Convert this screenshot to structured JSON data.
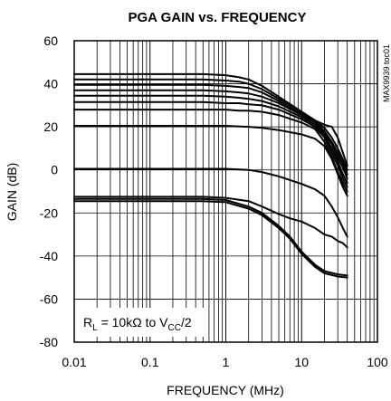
{
  "chart_data": {
    "type": "line",
    "title": "PGA GAIN vs. FREQUENCY",
    "xlabel": "FREQUENCY (MHz)",
    "ylabel": "GAIN (dB)",
    "x_scale": "log",
    "xlim": [
      0.01,
      100
    ],
    "ylim": [
      -80,
      60
    ],
    "x_ticks": [
      "0.01",
      "0.1",
      "1",
      "10",
      "100"
    ],
    "y_ticks": [
      "60",
      "40",
      "20",
      "0",
      "-20",
      "-40",
      "-60",
      "-80"
    ],
    "grid": true,
    "chart_code": "MAX9939 toc01",
    "annotation": {
      "prefix": "R",
      "sub1": "L",
      "middle": " = 10kΩ to V",
      "sub2": "CC",
      "suffix": "/2"
    },
    "series": [
      {
        "x": [
          0.01,
          0.5,
          1,
          1.5,
          2,
          3,
          5,
          10,
          15,
          20,
          25,
          30,
          35,
          40
        ],
        "y": [
          44.5,
          44.5,
          44,
          43,
          42,
          39,
          34,
          27,
          23,
          21,
          20,
          15,
          8,
          2
        ]
      },
      {
        "x": [
          0.01,
          0.5,
          1,
          1.5,
          2,
          3,
          5,
          10,
          15,
          20,
          25,
          30,
          35,
          40
        ],
        "y": [
          42,
          42,
          41.5,
          41,
          40,
          37.5,
          33,
          27,
          23,
          19.5,
          15,
          10,
          5,
          0
        ]
      },
      {
        "x": [
          0.01,
          0.5,
          1,
          1.5,
          2,
          3,
          5,
          10,
          15,
          20,
          25,
          30,
          35,
          40
        ],
        "y": [
          39.5,
          39.5,
          39,
          38.5,
          38,
          36,
          32,
          26,
          22.5,
          18,
          13,
          8,
          3,
          -2
        ]
      },
      {
        "x": [
          0.01,
          0.5,
          1,
          1.5,
          2,
          3,
          5,
          10,
          15,
          20,
          25,
          30,
          35,
          40
        ],
        "y": [
          37,
          37,
          36.5,
          36,
          35.5,
          34,
          31,
          25.5,
          22,
          17,
          12,
          6,
          1,
          -4
        ]
      },
      {
        "x": [
          0.01,
          0.5,
          1,
          1.5,
          2,
          3,
          5,
          10,
          15,
          20,
          25,
          30,
          35,
          40
        ],
        "y": [
          34.5,
          34.5,
          34,
          33.5,
          33,
          32,
          29.5,
          24.5,
          21,
          16,
          10,
          4,
          -2,
          -6
        ]
      },
      {
        "x": [
          0.01,
          0.5,
          1,
          1.5,
          2,
          3,
          5,
          10,
          15,
          20,
          25,
          30,
          35,
          40
        ],
        "y": [
          31.5,
          31.5,
          31,
          31,
          30.5,
          30,
          28,
          23.5,
          20,
          15,
          8,
          2,
          -4,
          -8
        ]
      },
      {
        "x": [
          0.01,
          0.5,
          1,
          1.5,
          2,
          3,
          5,
          10,
          15,
          20,
          25,
          30,
          35,
          40
        ],
        "y": [
          28,
          28,
          28,
          27.5,
          27.5,
          27,
          25.5,
          22,
          19,
          13,
          6,
          -1,
          -6,
          -10
        ]
      },
      {
        "x": [
          0.01,
          0.5,
          1,
          2,
          3,
          5,
          10,
          15,
          20,
          25,
          30,
          35,
          40
        ],
        "y": [
          20.5,
          20.5,
          20.5,
          20,
          19.5,
          18.5,
          16.5,
          14.5,
          11,
          5,
          -2,
          -8,
          -12
        ]
      },
      {
        "x": [
          0.01,
          0.5,
          1,
          2,
          3,
          5,
          10,
          15,
          20,
          25,
          30,
          35,
          40
        ],
        "y": [
          0.5,
          0.5,
          0.5,
          0,
          -1,
          -3,
          -6.5,
          -9,
          -12,
          -17,
          -22,
          -27,
          -31
        ]
      },
      {
        "x": [
          0.01,
          0.5,
          1,
          2,
          3,
          5,
          7,
          10,
          15,
          20,
          25,
          30,
          35,
          40
        ],
        "y": [
          -12.5,
          -12.5,
          -13,
          -14.5,
          -17,
          -20.5,
          -22.5,
          -24,
          -27,
          -30,
          -31,
          -33,
          -34,
          -36
        ]
      },
      {
        "x": [
          0.01,
          0.5,
          1,
          2,
          3,
          5,
          7,
          10,
          15,
          20,
          30,
          40
        ],
        "y": [
          -13.5,
          -13.5,
          -14,
          -17,
          -20,
          -26,
          -31,
          -38,
          -44,
          -47,
          -48.5,
          -49
        ]
      },
      {
        "x": [
          0.01,
          0.5,
          1,
          2,
          3,
          5,
          7,
          10,
          15,
          20,
          30,
          40
        ],
        "y": [
          -14.5,
          -14.5,
          -15,
          -18,
          -21,
          -27,
          -32,
          -39,
          -45,
          -48,
          -49.5,
          -50
        ]
      }
    ]
  }
}
